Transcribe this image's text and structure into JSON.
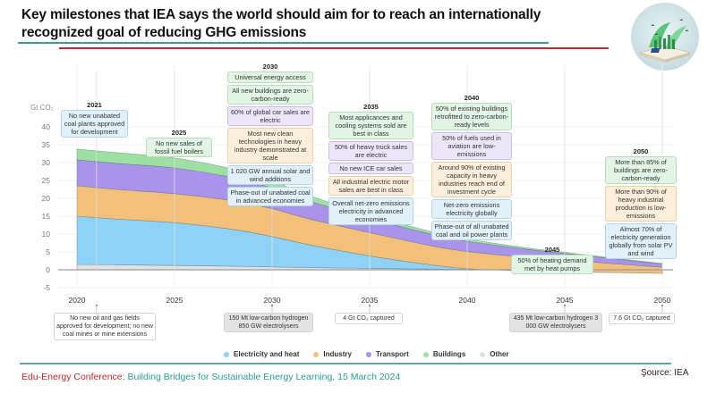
{
  "header": {
    "title": "Key milestones that IEA says the world should aim for to reach an internationally recognized goal of reducing GHG emissions"
  },
  "footer": {
    "conference_name": "Edu-Energy Conference:",
    "conference_subtitle": " Building Bridges for Sustainable Energy Learning, 15 March 2024",
    "source": "Şource: IEA"
  },
  "colors": {
    "electricity": "#8fd1f7",
    "industry": "#f2c07a",
    "transport": "#aa93ea",
    "buildings": "#9ee0a3",
    "other": "#e2e2e4",
    "teal_rule": "#3c9c9a",
    "red_rule": "#c0282d"
  },
  "milestones_top": [
    {
      "year": "2021",
      "items": [
        {
          "text": "No new unabated coal plants approved for development",
          "color": "blue"
        }
      ]
    },
    {
      "year": "2025",
      "items": [
        {
          "text": "No new sales of fossil fuel boilers",
          "color": "green"
        }
      ]
    },
    {
      "year": "2030",
      "items": [
        {
          "text": "Universal energy access",
          "color": "green"
        },
        {
          "text": "All new buildings are zero-carbon-ready",
          "color": "green"
        },
        {
          "text": "60% of global car sales are electric",
          "color": "purple"
        },
        {
          "text": "Most new clean technologies in heavy industry demonstrated at scale",
          "color": "orange"
        },
        {
          "text": "1 020 GW annual solar and wind additions",
          "color": "blue"
        },
        {
          "text": "Phase-out of unabated coal in advanced economies",
          "color": "blue"
        }
      ]
    },
    {
      "year": "2035",
      "items": [
        {
          "text": "Most applicances and cooling systems sold are best in class",
          "color": "green"
        },
        {
          "text": "50% of heavy truck sales are electric",
          "color": "purple"
        },
        {
          "text": "No new ICE car sales",
          "color": "purple"
        },
        {
          "text": "All industrial electric motor sales are best in class",
          "color": "orange"
        },
        {
          "text": "Overall net-zero emissions electricity in advanced economies",
          "color": "blue"
        }
      ]
    },
    {
      "year": "2040",
      "items": [
        {
          "text": "50% of existing buildings retrofitted to zero-carbon-ready levels",
          "color": "green"
        },
        {
          "text": "50% of fuels used in aviation are low-emissions",
          "color": "purple"
        },
        {
          "text": "Around 90% of existing capacity in heavy industries reach end of investment cycle",
          "color": "orange"
        },
        {
          "text": "Net-zero emissions electricity globally",
          "color": "blue"
        },
        {
          "text": "Phase-out of all unabated coal and oil power plants",
          "color": "blue"
        }
      ]
    },
    {
      "year": "2045",
      "items": [
        {
          "text": "50% of heating demand met by heat pumps",
          "color": "green"
        }
      ]
    },
    {
      "year": "2050",
      "items": [
        {
          "text": "More than 85% of buildings are zero-carbon-ready",
          "color": "green"
        },
        {
          "text": "More than 90% of heavy industrial production is low-emissions",
          "color": "orange"
        },
        {
          "text": "Almost 70% of electricity generation globally from solar PV and wind",
          "color": "blue"
        }
      ]
    }
  ],
  "milestones_bottom": [
    {
      "year": 2021,
      "text": "No new oil and gas fields approved for development; no new coal mines or mine extensions",
      "color": "white"
    },
    {
      "year": 2030,
      "text": "150 Mt low-carbon hydrogen 850 GW electrolysers",
      "color": "grey"
    },
    {
      "year": 2035,
      "text": "4 Gt CO₂ captured",
      "color": "white"
    },
    {
      "year": 2045,
      "text": "435 Mt low-carbon hydrogen 3 000 GW electrolysers",
      "color": "grey"
    },
    {
      "year": 2050,
      "text": "7.6 Gt CO₂ captured",
      "color": "white"
    }
  ],
  "chart_data": {
    "type": "area",
    "title": "Key milestones that IEA says the world should aim for to reach an internationally recognized goal of reducing GHG emissions",
    "xlabel": "",
    "ylabel": "Gt CO₂",
    "x": [
      2020,
      2022,
      2025,
      2028,
      2030,
      2032,
      2035,
      2038,
      2040,
      2043,
      2045,
      2048,
      2050
    ],
    "xticks": [
      2020,
      2025,
      2030,
      2035,
      2040,
      2045,
      2050
    ],
    "yticks": [
      -5,
      0,
      5,
      10,
      15,
      20,
      25,
      30,
      35,
      40
    ],
    "ylim": [
      -5,
      43
    ],
    "xlim": [
      2020,
      2050
    ],
    "grid": true,
    "legend_position": "bottom",
    "stacked": true,
    "series": [
      {
        "name": "Other",
        "key": "other",
        "values": [
          1.5,
          1.4,
          1.2,
          1.0,
          0.8,
          0.6,
          0.4,
          0.2,
          0.1,
          0.0,
          -0.2,
          -0.4,
          -0.6
        ]
      },
      {
        "name": "Electricity and heat",
        "key": "electricity",
        "values": [
          13.5,
          12.8,
          12.0,
          10.3,
          8.5,
          6.3,
          3.5,
          1.3,
          0.2,
          -0.3,
          -0.4,
          -0.4,
          -0.4
        ]
      },
      {
        "name": "Industry",
        "key": "industry",
        "values": [
          8.5,
          8.3,
          8.1,
          8.0,
          7.8,
          7.2,
          6.5,
          5.4,
          4.8,
          3.8,
          3.3,
          2.3,
          1.7
        ]
      },
      {
        "name": "Transport",
        "key": "transport",
        "values": [
          7.3,
          7.3,
          7.2,
          6.5,
          5.8,
          5.0,
          4.0,
          3.3,
          2.9,
          2.3,
          1.9,
          1.3,
          0.9
        ]
      },
      {
        "name": "Buildings",
        "key": "buildings",
        "values": [
          3.0,
          3.0,
          2.8,
          2.4,
          2.0,
          1.5,
          1.0,
          0.7,
          0.6,
          0.4,
          0.3,
          0.2,
          0.2
        ]
      }
    ],
    "legend": [
      "Electricity and heat",
      "Industry",
      "Transport",
      "Buildings",
      "Other"
    ]
  },
  "legend": [
    {
      "label": "Electricity and heat",
      "key": "electricity"
    },
    {
      "label": "Industry",
      "key": "industry"
    },
    {
      "label": "Transport",
      "key": "transport"
    },
    {
      "label": "Buildings",
      "key": "buildings"
    },
    {
      "label": "Other",
      "key": "other"
    }
  ]
}
